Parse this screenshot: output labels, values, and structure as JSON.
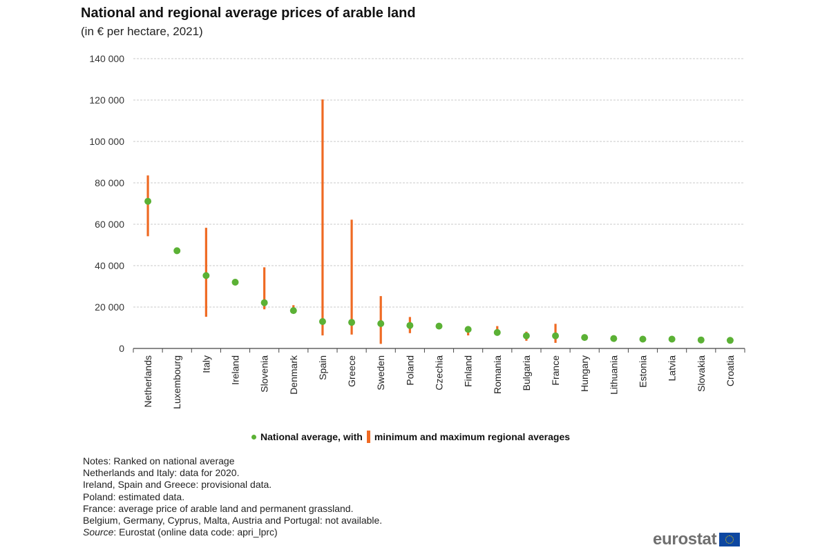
{
  "header": {
    "title": "National and regional average prices of arable land",
    "subtitle": "(in € per hectare, 2021)"
  },
  "chart_data": {
    "type": "scatter",
    "title": "National and regional average prices of arable land",
    "subtitle": "(in € per hectare, 2021)",
    "xlabel": "",
    "ylabel": "",
    "ylim": [
      0,
      140000
    ],
    "yticks": [
      0,
      20000,
      40000,
      60000,
      80000,
      100000,
      120000,
      140000
    ],
    "ytick_labels": [
      "0",
      "20 000",
      "40 000",
      "60 000",
      "80 000",
      "100 000",
      "120 000",
      "140 000"
    ],
    "grid": true,
    "legend_position": "bottom-center",
    "categories": [
      "Netherlands",
      "Luxembourg",
      "Italy",
      "Ireland",
      "Slovenia",
      "Denmark",
      "Spain",
      "Greece",
      "Sweden",
      "Poland",
      "Czechia",
      "Finland",
      "Romania",
      "Bulgaria",
      "France",
      "Hungary",
      "Lithuania",
      "Estonia",
      "Latvia",
      "Slovakia",
      "Croatia"
    ],
    "series": [
      {
        "name": "National average",
        "marker": "dot",
        "color": "#5bb135",
        "values": [
          71100,
          47200,
          35200,
          32000,
          22100,
          18300,
          13000,
          12600,
          12000,
          11100,
          10800,
          9200,
          7700,
          6100,
          6100,
          5300,
          4800,
          4500,
          4500,
          4100,
          3900
        ]
      },
      {
        "name": "Minimum regional average",
        "marker": "range-bottom",
        "color": "#ef6a23",
        "values": [
          54200,
          null,
          15300,
          null,
          18900,
          17500,
          6300,
          6700,
          2200,
          7400,
          null,
          6300,
          7300,
          3700,
          2700,
          4700,
          null,
          null,
          null,
          null,
          null
        ]
      },
      {
        "name": "Maximum regional average",
        "marker": "range-top",
        "color": "#ef6a23",
        "values": [
          83600,
          null,
          58300,
          null,
          39200,
          20900,
          120300,
          62200,
          25300,
          15200,
          null,
          9800,
          10800,
          8100,
          11900,
          5600,
          null,
          null,
          null,
          null,
          null
        ]
      }
    ]
  },
  "legend": {
    "dot_label": "National average, with",
    "bar_label": "minimum and maximum regional averages",
    "dot_color": "#5bb135",
    "bar_color": "#ef6a23"
  },
  "notes": {
    "lines": [
      "Notes: Ranked on national average",
      "Netherlands  and Italy: data for 2020.",
      "Ireland,  Spain and Greece: provisional data.",
      "Poland: estimated data.",
      "France: average price of arable land and permanent grassland.",
      "Belgium, Germany, Cyprus, Malta, Austria and Portugal: not available."
    ],
    "source_label": "Source",
    "source_text": ": Eurostat (online data code: apri_lprc)"
  },
  "logo": {
    "text": "eurostat",
    "flag_icon": "eu-flag-icon"
  }
}
